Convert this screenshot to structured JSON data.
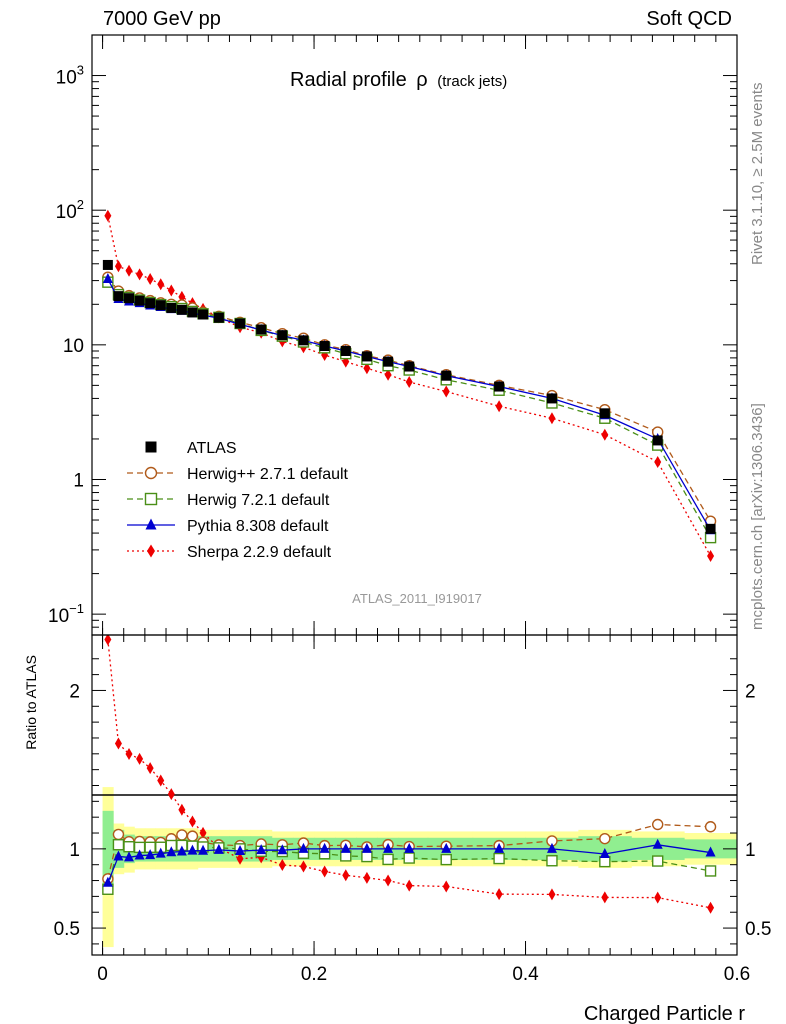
{
  "header": {
    "left": "7000 GeV pp",
    "right": "Soft QCD"
  },
  "side_labels": {
    "rivet": "Rivet 3.1.10, ≥ 2.5M events",
    "mcplots": "mcplots.cern.ch [arXiv:1306.3436]"
  },
  "watermark": "ATLAS_2011_I919017",
  "chart_data": {
    "type": "line",
    "title": "Radial profile",
    "title_symbol": "ρ",
    "title_suffix": "(track jets)",
    "xlabel": "Charged Particle r",
    "ylabel_ratio": "Ratio to ATLAS",
    "xlim": [
      -0.01,
      0.6
    ],
    "ylim_main": [
      0.07,
      2000
    ],
    "yscale_main": "log",
    "ylim_ratio": [
      0.33,
      2.35
    ],
    "x_ticks": [
      "0",
      "0.2",
      "0.4",
      "0.6"
    ],
    "main_y_ticks": [
      "10^-1",
      "1",
      "10",
      "10^2",
      "10^3"
    ],
    "ratio_y_ticks": [
      "0.5",
      "1",
      "2"
    ],
    "legend_position": "lower-left",
    "x": [
      0.005,
      0.015,
      0.025,
      0.035,
      0.045,
      0.055,
      0.065,
      0.075,
      0.085,
      0.095,
      0.11,
      0.13,
      0.15,
      0.17,
      0.19,
      0.21,
      0.23,
      0.25,
      0.27,
      0.29,
      0.325,
      0.375,
      0.425,
      0.475,
      0.525,
      0.575
    ],
    "series": [
      {
        "name": "ATLAS",
        "color": "#000000",
        "marker": "filled-square",
        "line": "none",
        "values": [
          39.2,
          23.0,
          22.2,
          21.3,
          20.4,
          19.7,
          18.8,
          18.2,
          17.4,
          16.8,
          15.9,
          14.4,
          13.0,
          11.8,
          10.8,
          9.8,
          9.0,
          8.2,
          7.5,
          6.9,
          5.9,
          4.9,
          4.0,
          3.1,
          1.95,
          0.43
        ]
      },
      {
        "name": "Herwig++ 2.7.1 default",
        "color": "#b05a1a",
        "marker": "open-circle",
        "line": "dashed",
        "values": [
          31.8,
          25.1,
          23.2,
          22.3,
          21.3,
          20.5,
          20.0,
          19.8,
          18.8,
          17.5,
          16.3,
          14.7,
          13.4,
          12.1,
          11.2,
          10.0,
          9.2,
          8.3,
          7.7,
          7.0,
          6.0,
          5.0,
          4.2,
          3.3,
          2.25,
          0.49
        ]
      },
      {
        "name": "Herwig 7.2.1 default",
        "color": "#4a8f17",
        "marker": "open-square",
        "line": "dashed",
        "values": [
          29.2,
          23.6,
          22.5,
          21.5,
          20.6,
          19.9,
          19.2,
          18.6,
          17.7,
          17.0,
          16.0,
          14.4,
          12.8,
          11.6,
          10.5,
          9.5,
          8.6,
          7.8,
          7.0,
          6.5,
          5.5,
          4.6,
          3.7,
          2.85,
          1.8,
          0.37
        ]
      },
      {
        "name": "Pythia 8.308 default",
        "color": "#0000d0",
        "marker": "filled-triangle",
        "line": "solid",
        "values": [
          30.8,
          21.9,
          21.0,
          20.4,
          19.6,
          19.1,
          18.4,
          17.9,
          17.2,
          16.6,
          15.8,
          14.2,
          12.9,
          11.7,
          10.8,
          9.8,
          9.0,
          8.2,
          7.5,
          6.9,
          5.9,
          4.9,
          4.0,
          3.0,
          2.0,
          0.42
        ]
      },
      {
        "name": "Sherpa 2.2.9 default",
        "color": "#ee0000",
        "marker": "filled-diamond",
        "line": "dotted",
        "values": [
          91.0,
          38.3,
          35.5,
          33.4,
          30.8,
          28.2,
          25.3,
          22.7,
          20.4,
          18.5,
          16.0,
          13.5,
          12.3,
          10.6,
          9.6,
          8.4,
          7.5,
          6.7,
          6.0,
          5.3,
          4.5,
          3.5,
          2.85,
          2.15,
          1.35,
          0.27
        ]
      }
    ],
    "ratio_bands": {
      "green": {
        "color": "#90ee90",
        "lower": [
          0.76,
          0.88,
          0.91,
          0.92,
          0.92,
          0.92,
          0.92,
          0.92,
          0.92,
          0.92,
          0.92,
          0.92,
          0.92,
          0.93,
          0.93,
          0.93,
          0.93,
          0.93,
          0.93,
          0.93,
          0.93,
          0.93,
          0.93,
          0.92,
          0.93,
          0.94
        ],
        "upper": [
          1.24,
          1.12,
          1.09,
          1.08,
          1.08,
          1.08,
          1.08,
          1.08,
          1.08,
          1.08,
          1.08,
          1.08,
          1.08,
          1.07,
          1.07,
          1.07,
          1.07,
          1.07,
          1.07,
          1.07,
          1.07,
          1.07,
          1.07,
          1.08,
          1.07,
          1.06
        ]
      },
      "yellow": {
        "color": "#ffff99",
        "lower": [
          0.38,
          0.84,
          0.85,
          0.87,
          0.87,
          0.87,
          0.87,
          0.87,
          0.87,
          0.88,
          0.88,
          0.88,
          0.88,
          0.89,
          0.89,
          0.89,
          0.89,
          0.89,
          0.89,
          0.89,
          0.89,
          0.89,
          0.89,
          0.88,
          0.89,
          0.9
        ],
        "upper": [
          1.39,
          1.16,
          1.14,
          1.13,
          1.13,
          1.13,
          1.13,
          1.13,
          1.13,
          1.12,
          1.12,
          1.12,
          1.12,
          1.11,
          1.11,
          1.11,
          1.11,
          1.11,
          1.11,
          1.11,
          1.11,
          1.11,
          1.11,
          1.12,
          1.11,
          1.1
        ]
      }
    }
  }
}
